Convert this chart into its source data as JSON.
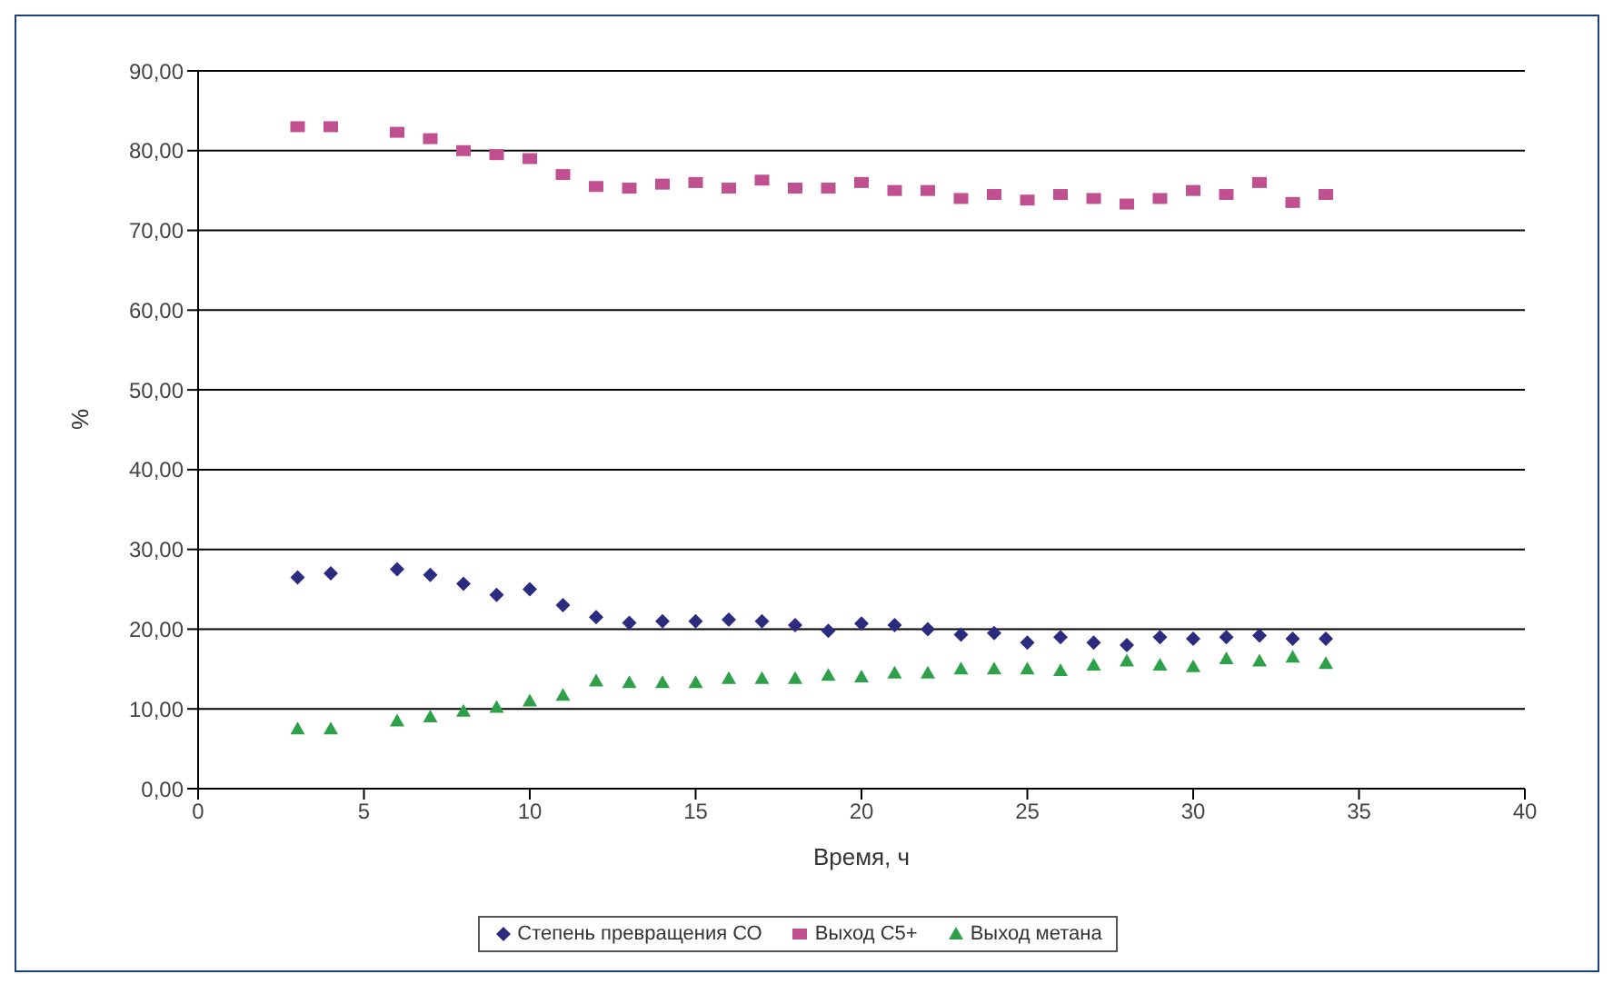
{
  "chart_data": {
    "type": "scatter",
    "xlabel": "Время, ч",
    "ylabel": "%",
    "x": [
      3,
      4,
      6,
      7,
      8,
      9,
      10,
      11,
      12,
      13,
      14,
      15,
      16,
      17,
      18,
      19,
      20,
      21,
      22,
      23,
      24,
      25,
      26,
      27,
      28,
      29,
      30,
      31,
      32,
      33,
      34
    ],
    "series": [
      {
        "name": "Степень превращения СО",
        "color": "#2b2b80",
        "marker": "diamond",
        "values": [
          26.5,
          27,
          27.5,
          26.8,
          25.7,
          24.3,
          25,
          23,
          21.5,
          20.8,
          21,
          21,
          21.2,
          21,
          20.5,
          19.8,
          20.7,
          20.5,
          20,
          19.3,
          19.5,
          18.3,
          19,
          18.3,
          18,
          19,
          18.8,
          19,
          19.2,
          18.8,
          18.8
        ]
      },
      {
        "name": "Выход С5+",
        "color": "#c0508f",
        "marker": "square",
        "values": [
          83,
          83,
          82.3,
          81.5,
          80,
          79.5,
          79,
          77,
          75.5,
          75.3,
          75.8,
          76,
          75.3,
          76.3,
          75.3,
          75.3,
          76,
          75,
          75,
          74,
          74.5,
          73.8,
          74.5,
          74,
          73.3,
          74,
          75,
          74.5,
          76,
          73.5,
          74.5
        ]
      },
      {
        "name": "Выход метана",
        "color": "#2ea04a",
        "marker": "triangle",
        "values": [
          7.5,
          7.5,
          8.5,
          9,
          9.7,
          10.2,
          11,
          11.7,
          13.5,
          13.3,
          13.3,
          13.3,
          13.8,
          13.8,
          13.8,
          14.2,
          14,
          14.5,
          14.5,
          15,
          15,
          15,
          14.8,
          15.5,
          16,
          15.5,
          15.3,
          16.3,
          16,
          16.5,
          15.7
        ]
      }
    ],
    "xlim": [
      0,
      40
    ],
    "xticks": [
      0,
      5,
      10,
      15,
      20,
      25,
      30,
      35,
      40
    ],
    "ylim": [
      0,
      90
    ],
    "yticks": [
      {
        "value": 0,
        "label": "0,00"
      },
      {
        "value": 10,
        "label": "10,00"
      },
      {
        "value": 20,
        "label": "20,00"
      },
      {
        "value": 30,
        "label": "30,00"
      },
      {
        "value": 40,
        "label": "40,00"
      },
      {
        "value": 50,
        "label": "50,00"
      },
      {
        "value": 60,
        "label": "60,00"
      },
      {
        "value": 70,
        "label": "70,00"
      },
      {
        "value": 80,
        "label": "80,00"
      },
      {
        "value": 90,
        "label": "90,00"
      }
    ],
    "grid": "y",
    "legend": "bottom"
  }
}
